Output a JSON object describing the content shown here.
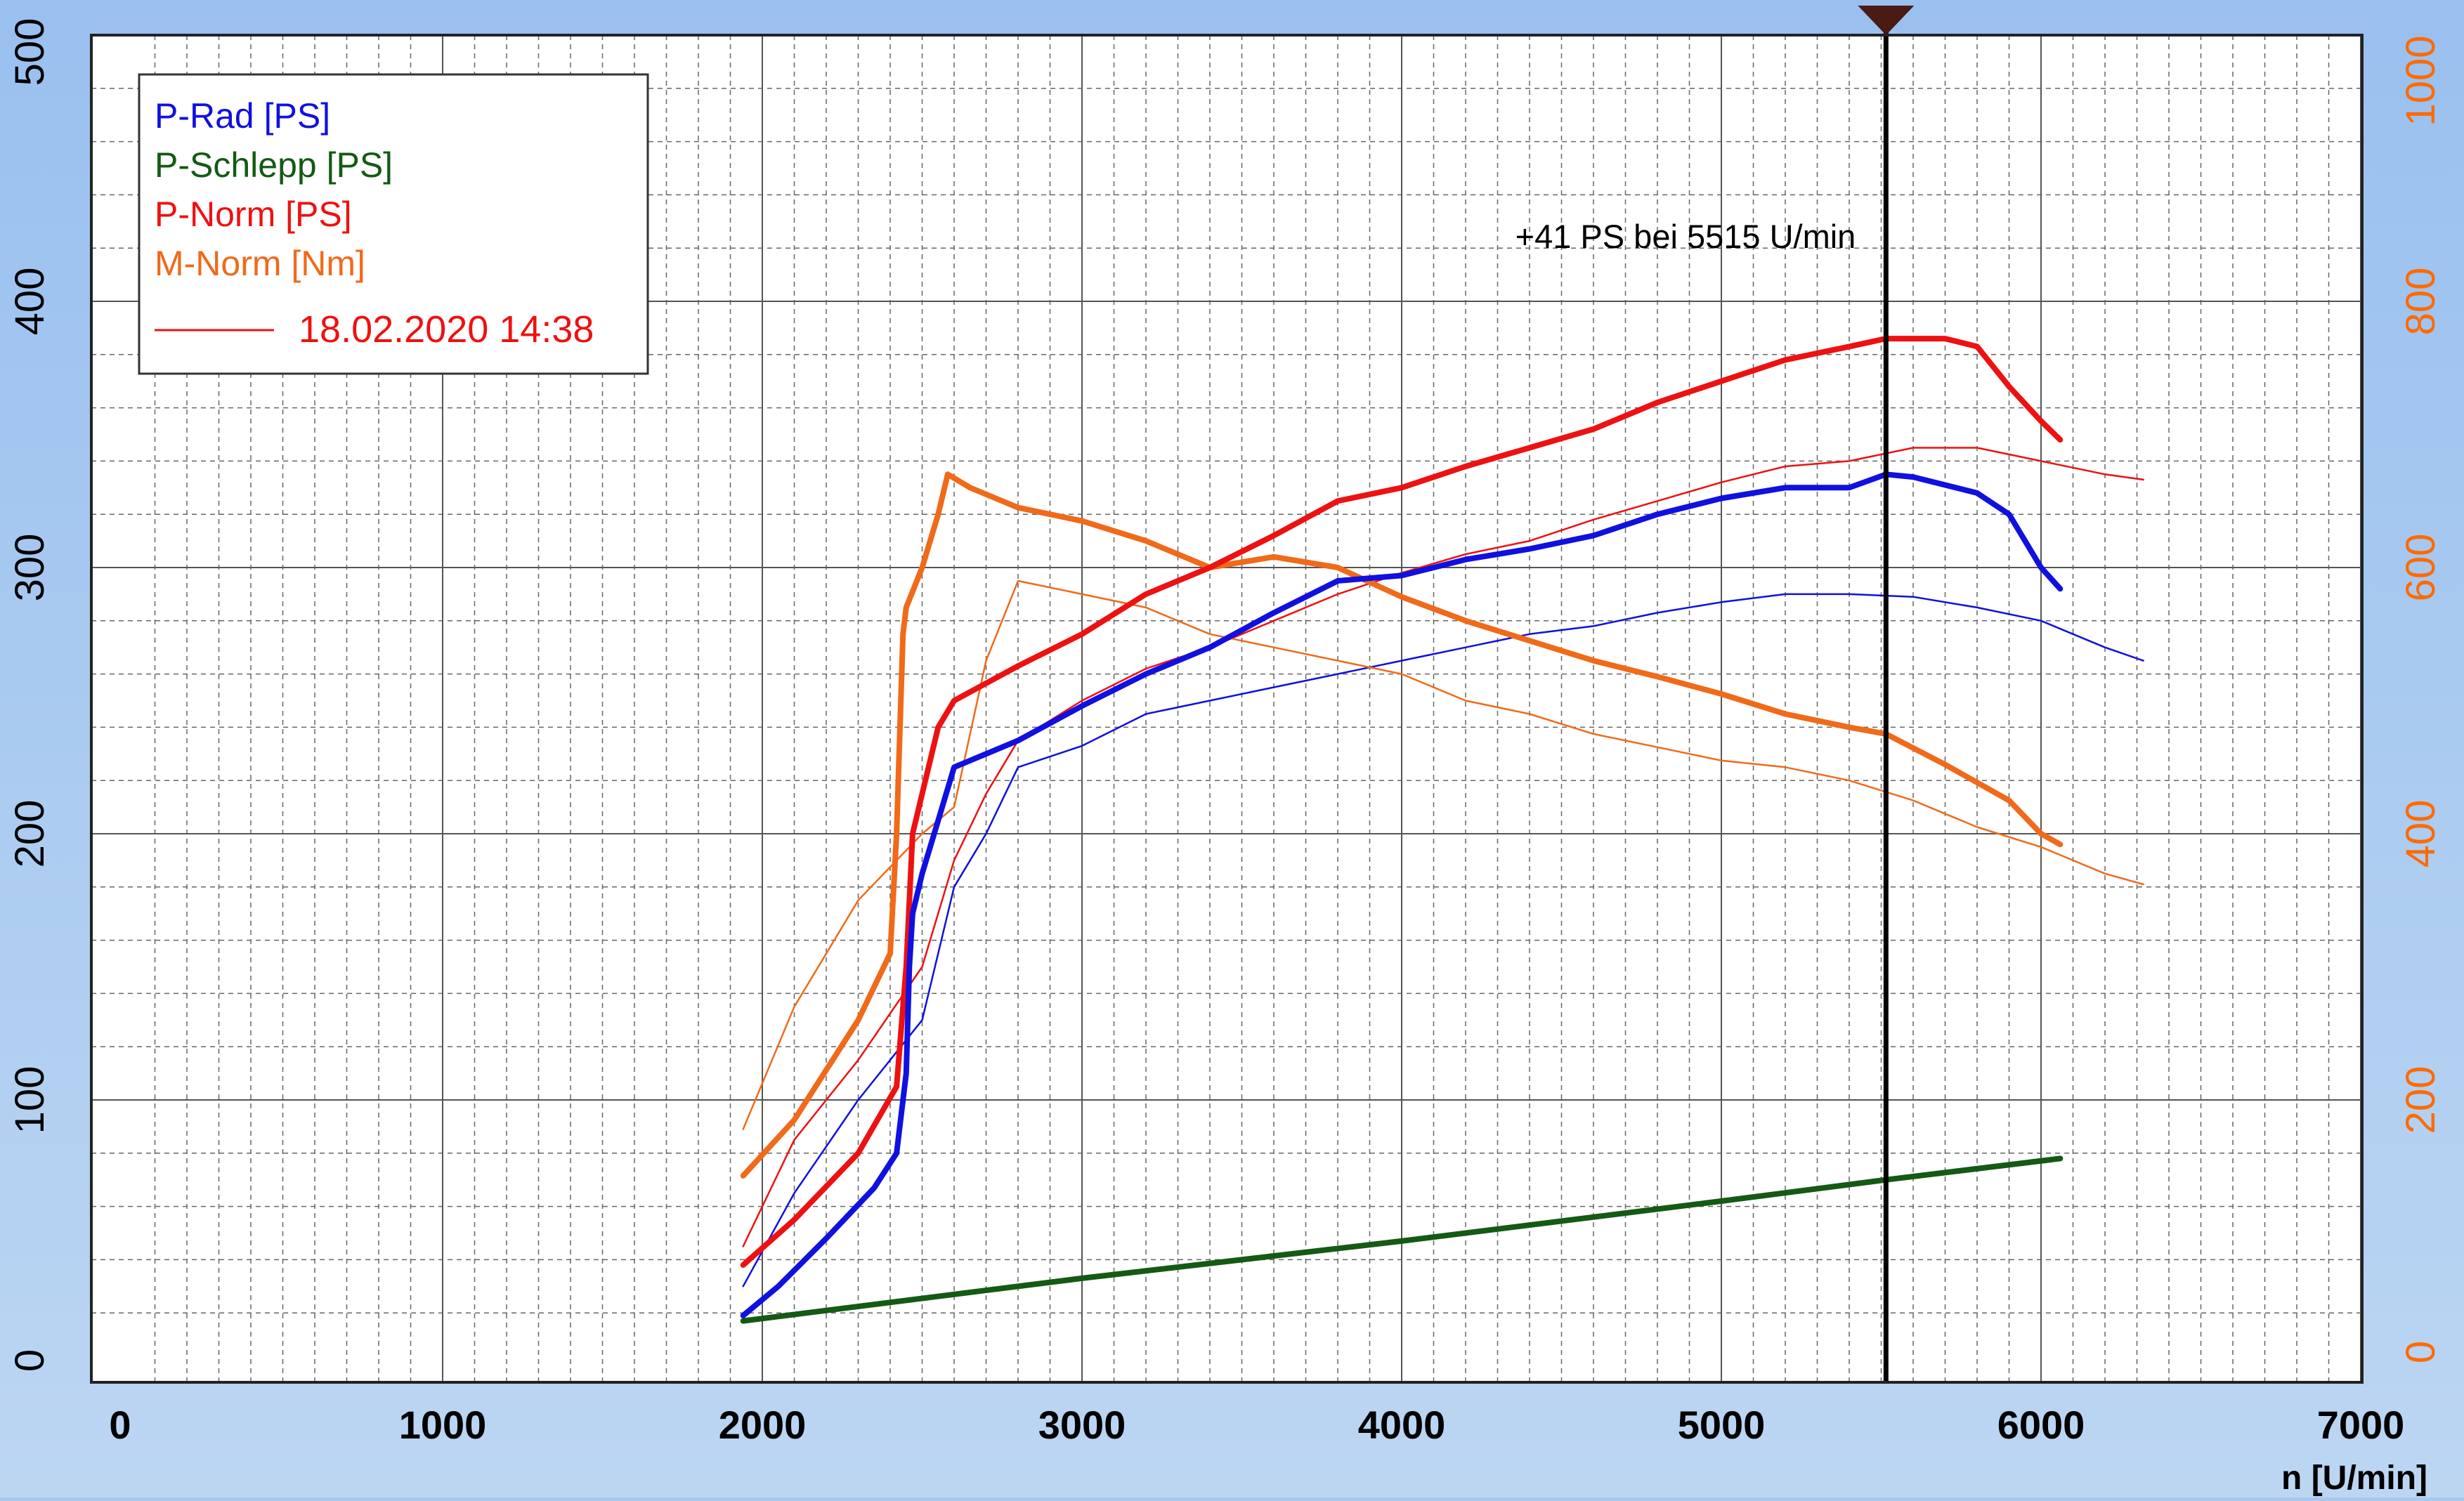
{
  "chart_data": {
    "type": "line",
    "x_axis": {
      "label": "n [U/min]",
      "ticks": [
        0,
        1000,
        2000,
        3000,
        4000,
        5000,
        6000,
        7000
      ],
      "range": [
        0,
        7000
      ]
    },
    "y_axis_left": {
      "ticks": [
        0,
        100,
        200,
        300,
        400,
        500
      ],
      "range": [
        0,
        500
      ],
      "color": "#000000"
    },
    "y_axis_right": {
      "ticks": [
        0,
        200,
        400,
        600,
        800,
        1000
      ],
      "range": [
        0,
        1000
      ],
      "color": "#ff6a00"
    },
    "grid": true,
    "legend": {
      "position": "top-left",
      "entries": [
        {
          "label": "P-Rad [PS]",
          "color": "#1010e0"
        },
        {
          "label": "P-Schlepp [PS]",
          "color": "#145a14"
        },
        {
          "label": "P-Norm [PS]",
          "color": "#ee1111"
        },
        {
          "label": "M-Norm [Nm]",
          "color": "#f06a1a"
        }
      ],
      "run_label": "18.02.2020 14:38",
      "run_color": "#ee1111"
    },
    "annotation": {
      "text": "+41 PS bei 5515 U/min",
      "cursor_x": 5515
    },
    "series": [
      {
        "name": "P-Rad [PS]",
        "run": "current",
        "color": "#1010e0",
        "thick": true,
        "axis": "left",
        "x": [
          1940,
          2050,
          2200,
          2350,
          2420,
          2450,
          2460,
          2470,
          2500,
          2550,
          2600,
          2700,
          2800,
          3000,
          3200,
          3400,
          3600,
          3800,
          4000,
          4200,
          4400,
          4600,
          4800,
          5000,
          5200,
          5400,
          5515,
          5600,
          5800,
          5900,
          6000,
          6060
        ],
        "y": [
          19,
          30,
          48,
          67,
          80,
          110,
          150,
          170,
          185,
          205,
          225,
          230,
          235,
          248,
          260,
          270,
          283,
          295,
          297,
          303,
          307,
          312,
          320,
          326,
          330,
          330,
          335,
          334,
          328,
          320,
          300,
          292
        ]
      },
      {
        "name": "P-Schlepp [PS]",
        "run": "current",
        "color": "#145a14",
        "thick": true,
        "axis": "left",
        "x": [
          1940,
          3000,
          4000,
          5000,
          5515,
          6060
        ],
        "y": [
          17,
          33,
          47,
          62,
          70,
          78
        ]
      },
      {
        "name": "P-Norm [PS]",
        "run": "current",
        "color": "#ee1111",
        "thick": true,
        "axis": "left",
        "x": [
          1940,
          2100,
          2300,
          2420,
          2450,
          2470,
          2500,
          2550,
          2600,
          2800,
          3000,
          3200,
          3400,
          3600,
          3800,
          4000,
          4200,
          4400,
          4600,
          4800,
          5000,
          5200,
          5400,
          5515,
          5700,
          5800,
          5900,
          6000,
          6060
        ],
        "y": [
          38,
          55,
          80,
          105,
          150,
          200,
          215,
          240,
          250,
          263,
          275,
          290,
          300,
          312,
          325,
          330,
          338,
          345,
          352,
          362,
          370,
          378,
          383,
          386,
          386,
          383,
          368,
          355,
          348
        ]
      },
      {
        "name": "M-Norm [Nm]",
        "run": "current",
        "color": "#f06a1a",
        "thick": true,
        "axis": "right",
        "x": [
          1940,
          2100,
          2300,
          2400,
          2420,
          2440,
          2450,
          2500,
          2550,
          2580,
          2650,
          2800,
          3000,
          3200,
          3400,
          3600,
          3800,
          4000,
          4200,
          4400,
          4600,
          4800,
          5000,
          5200,
          5400,
          5515,
          5700,
          5900,
          6000,
          6060
        ],
        "y": [
          143,
          185,
          260,
          310,
          400,
          550,
          570,
          600,
          640,
          670,
          660,
          645,
          635,
          620,
          600,
          608,
          600,
          578,
          560,
          545,
          530,
          518,
          505,
          490,
          480,
          475,
          452,
          425,
          400,
          392
        ]
      },
      {
        "name": "P-Rad [PS]",
        "run": "18.02.2020 14:38",
        "color": "#1010e0",
        "thick": false,
        "axis": "left",
        "x": [
          1940,
          2100,
          2300,
          2500,
          2600,
          2700,
          2800,
          3000,
          3200,
          3400,
          3600,
          3800,
          4000,
          4200,
          4400,
          4600,
          4800,
          5000,
          5200,
          5400,
          5600,
          5800,
          6000,
          6200,
          6320
        ],
        "y": [
          30,
          65,
          100,
          130,
          180,
          200,
          225,
          233,
          245,
          250,
          255,
          260,
          265,
          270,
          275,
          278,
          283,
          287,
          290,
          290,
          289,
          285,
          280,
          270,
          265
        ]
      },
      {
        "name": "P-Norm [PS]",
        "run": "18.02.2020 14:38",
        "color": "#ee1111",
        "thick": false,
        "axis": "left",
        "x": [
          1940,
          2100,
          2300,
          2500,
          2600,
          2700,
          2800,
          3000,
          3200,
          3400,
          3600,
          3800,
          4000,
          4200,
          4400,
          4600,
          4800,
          5000,
          5200,
          5400,
          5600,
          5800,
          6000,
          6200,
          6320
        ],
        "y": [
          45,
          85,
          115,
          150,
          190,
          215,
          235,
          250,
          262,
          270,
          280,
          290,
          298,
          305,
          310,
          318,
          325,
          332,
          338,
          340,
          345,
          345,
          340,
          335,
          333
        ]
      },
      {
        "name": "M-Norm [Nm]",
        "run": "18.02.2020 14:38",
        "color": "#f06a1a",
        "thick": false,
        "axis": "right",
        "x": [
          1940,
          2100,
          2300,
          2500,
          2600,
          2700,
          2800,
          3000,
          3200,
          3400,
          3600,
          3800,
          4000,
          4200,
          4400,
          4600,
          4800,
          5000,
          5200,
          5400,
          5600,
          5800,
          6000,
          6200,
          6320
        ],
        "y": [
          178,
          270,
          350,
          400,
          420,
          530,
          590,
          580,
          570,
          550,
          540,
          530,
          520,
          500,
          490,
          475,
          465,
          455,
          450,
          440,
          425,
          405,
          390,
          370,
          362
        ]
      }
    ]
  }
}
